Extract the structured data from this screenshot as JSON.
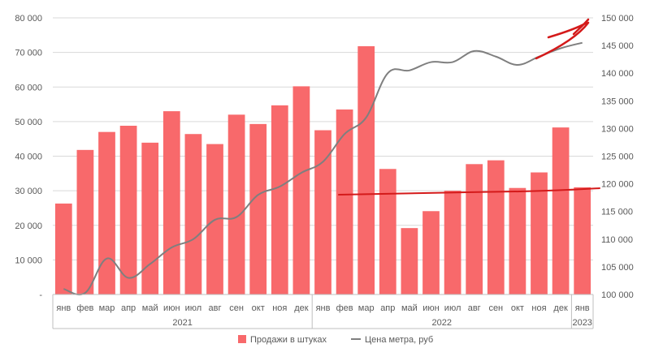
{
  "chart_data": {
    "type": "bar",
    "categories": [
      "янв",
      "фев",
      "мар",
      "апр",
      "май",
      "июн",
      "июл",
      "авг",
      "сен",
      "окт",
      "ноя",
      "дек",
      "янв",
      "фев",
      "мар",
      "апр",
      "май",
      "июн",
      "июл",
      "авг",
      "сен",
      "окт",
      "ноя",
      "дек",
      "янв"
    ],
    "year_groups": [
      {
        "label": "2021",
        "count": 12
      },
      {
        "label": "2022",
        "count": 12
      },
      {
        "label": "2023",
        "count": 1
      }
    ],
    "series": [
      {
        "name": "Продажи в штуках",
        "kind": "bar",
        "axis": "left",
        "color": "#F8696B",
        "values": [
          26300,
          41800,
          47000,
          48800,
          43900,
          53000,
          46400,
          43500,
          52000,
          49300,
          54700,
          60200,
          47500,
          53500,
          71800,
          36300,
          19200,
          24100,
          30000,
          37700,
          38800,
          30800,
          35300,
          48300,
          31000
        ]
      },
      {
        "name": "Цена метра, руб",
        "kind": "line",
        "axis": "right",
        "color": "#7F7F7F",
        "values": [
          101000,
          100300,
          106500,
          103000,
          105500,
          108500,
          110000,
          113500,
          114000,
          118000,
          119500,
          122000,
          124000,
          129000,
          132000,
          140000,
          140500,
          142000,
          142000,
          144000,
          143000,
          141500,
          143000,
          144500,
          145500
        ]
      }
    ],
    "y_left": {
      "min": 0,
      "max": 80000,
      "step": 10000,
      "tick_labels": [
        "-",
        "10 000",
        "20 000",
        "30 000",
        "40 000",
        "50 000",
        "60 000",
        "70 000",
        "80 000"
      ]
    },
    "y_right": {
      "min": 100000,
      "max": 150000,
      "step": 5000,
      "tick_labels": [
        "100 000",
        "105 000",
        "110 000",
        "115 000",
        "120 000",
        "125 000",
        "130 000",
        "135 000",
        "140 000",
        "145 000",
        "150 000"
      ]
    },
    "legend": {
      "position": "bottom",
      "items": [
        "Продажи в штуках",
        "Цена метра, руб"
      ]
    },
    "grid": true,
    "annotations": {
      "hand_drawn_color": "#D41A1A"
    }
  }
}
